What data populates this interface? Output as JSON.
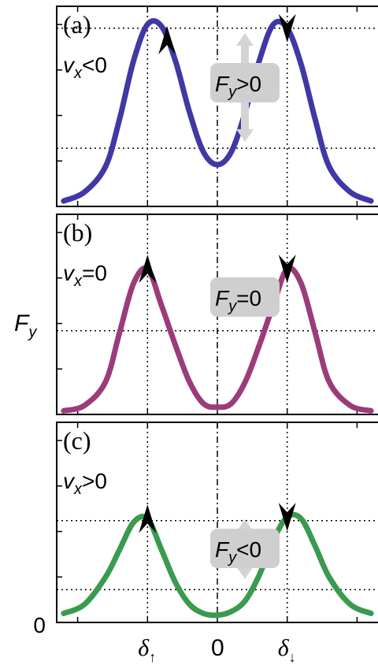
{
  "figure": {
    "ylabel": "F",
    "ylabel_sub": "y",
    "y_zero_label": "0",
    "x_ticks": [
      {
        "sym": "δ",
        "sub": "↑",
        "x": -1
      },
      {
        "sym": "0",
        "sub": "",
        "x": 0
      },
      {
        "sym": "δ",
        "sub": "↓",
        "x": 1
      }
    ]
  },
  "chart_data": [
    {
      "type": "line",
      "panel": "(a)",
      "condition": {
        "var": "v",
        "sub": "x",
        "rel": "<0"
      },
      "force_label": {
        "var": "F",
        "sub": "y",
        "rel": ">0"
      },
      "force_arrow": "up-down",
      "color": "#3f38a6",
      "x": [
        -2.2,
        -1.9,
        -1.6,
        -1.4,
        -1.2,
        -1.0,
        -0.8,
        -0.6,
        -0.4,
        -0.2,
        0.0,
        0.2,
        0.4,
        0.6,
        0.8,
        1.0,
        1.2,
        1.4,
        1.6,
        1.9,
        2.2
      ],
      "y": [
        0.03,
        0.08,
        0.22,
        0.48,
        0.8,
        1.0,
        0.99,
        0.8,
        0.52,
        0.3,
        0.23,
        0.3,
        0.52,
        0.8,
        1.0,
        0.98,
        0.78,
        0.48,
        0.22,
        0.08,
        0.03
      ],
      "arrows": [
        {
          "x": -0.72,
          "dir": "up"
        },
        {
          "x": 1.0,
          "dir": "down"
        }
      ],
      "hlines": [
        0.98,
        0.32
      ],
      "ylim": [
        0,
        1.1
      ],
      "xlim": [
        -2.3,
        2.3
      ]
    },
    {
      "type": "line",
      "panel": "(b)",
      "condition": {
        "var": "v",
        "sub": "x",
        "rel": "=0"
      },
      "force_label": {
        "var": "F",
        "sub": "y",
        "rel": "=0"
      },
      "color": "#9b3c7a",
      "x": [
        -2.2,
        -1.9,
        -1.6,
        -1.4,
        -1.2,
        -1.0,
        -0.8,
        -0.6,
        -0.4,
        -0.2,
        0.0,
        0.2,
        0.4,
        0.6,
        0.8,
        1.0,
        1.2,
        1.4,
        1.6,
        1.9,
        2.2
      ],
      "y": [
        0.02,
        0.05,
        0.18,
        0.45,
        0.72,
        0.8,
        0.6,
        0.38,
        0.18,
        0.06,
        0.04,
        0.06,
        0.18,
        0.38,
        0.6,
        0.8,
        0.72,
        0.45,
        0.18,
        0.05,
        0.02
      ],
      "arrows": [
        {
          "x": -1.0,
          "dir": "up"
        },
        {
          "x": 1.0,
          "dir": "down"
        }
      ],
      "hlines": [
        0.46
      ],
      "ylim": [
        0,
        1.1
      ],
      "xlim": [
        -2.3,
        2.3
      ]
    },
    {
      "type": "line",
      "panel": "(c)",
      "condition": {
        "var": "v",
        "sub": "x",
        "rel": ">0"
      },
      "force_label": {
        "var": "F",
        "sub": "y",
        "rel": "<0"
      },
      "force_arrow": "up-down",
      "color": "#3a9a4e",
      "x": [
        -2.2,
        -1.9,
        -1.6,
        -1.4,
        -1.2,
        -1.0,
        -0.8,
        -0.6,
        -0.4,
        -0.2,
        0.0,
        0.2,
        0.4,
        0.6,
        0.8,
        1.0,
        1.2,
        1.4,
        1.6,
        1.9,
        2.2
      ],
      "y": [
        0.05,
        0.1,
        0.25,
        0.4,
        0.55,
        0.57,
        0.4,
        0.22,
        0.1,
        0.05,
        0.04,
        0.06,
        0.12,
        0.26,
        0.45,
        0.58,
        0.57,
        0.42,
        0.25,
        0.1,
        0.05
      ],
      "arrows": [
        {
          "x": -1.0,
          "dir": "up"
        },
        {
          "x": 1.0,
          "dir": "down"
        }
      ],
      "hlines": [
        0.56,
        0.18
      ],
      "ylim": [
        0,
        1.1
      ],
      "xlim": [
        -2.3,
        2.3
      ]
    }
  ]
}
